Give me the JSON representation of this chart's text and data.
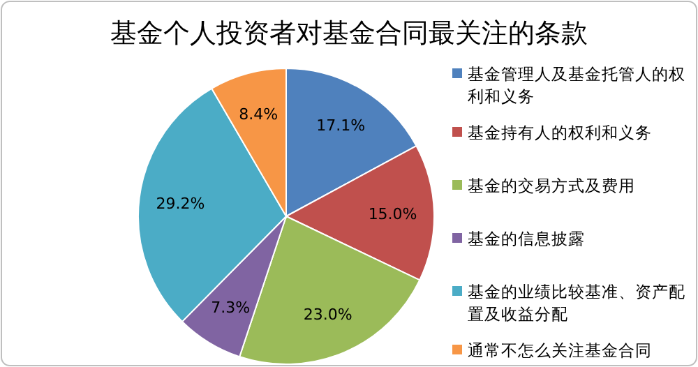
{
  "chart_data": {
    "type": "pie",
    "title": "基金个人投资者对基金合同最关注的条款",
    "categories": [
      "基金管理人及基金托管人的权利和义务",
      "基金持有人的权利和义务",
      "基金的交易方式及费用",
      "基金的信息披露",
      "基金的业绩比较基准、资产配置及收益分配",
      "通常不怎么关注基金合同"
    ],
    "values": [
      17.1,
      15.0,
      23.0,
      7.3,
      29.2,
      8.4
    ],
    "colors": [
      "#4f81bd",
      "#c0504d",
      "#9bbb59",
      "#8064a2",
      "#4bacc6",
      "#f79646"
    ],
    "value_labels": [
      "17.1%",
      "15.0%",
      "23.0%",
      "7.3%",
      "29.2%",
      "8.4%"
    ],
    "legend": "right"
  }
}
